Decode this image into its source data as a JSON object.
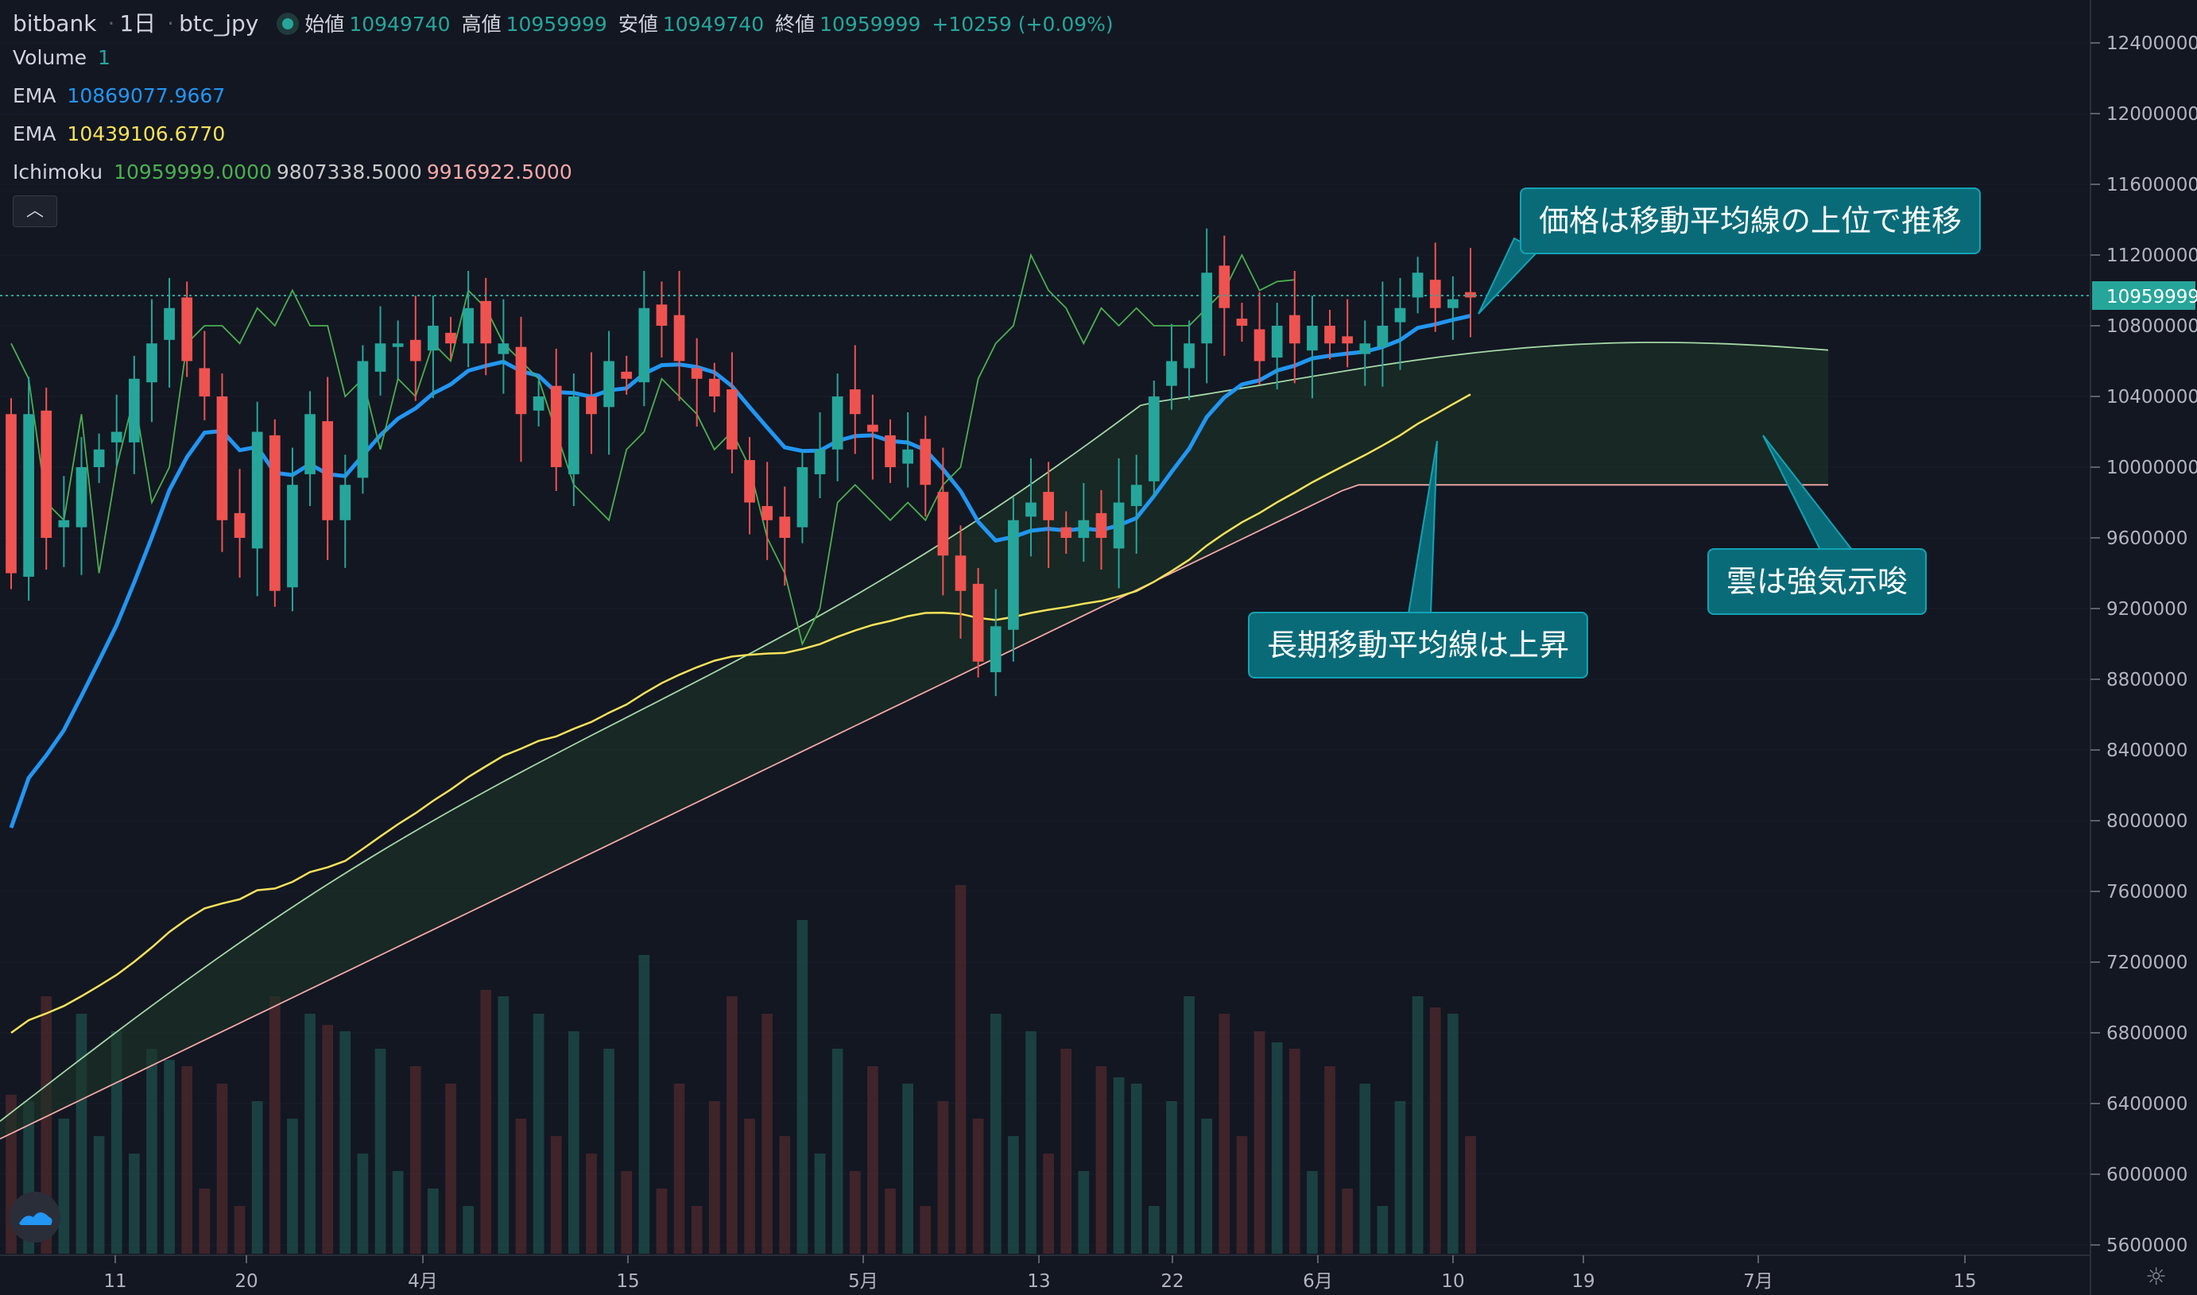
{
  "header": {
    "symbol_exchange": "bitbank",
    "interval": "1日",
    "symbol": "btc_jpy",
    "ohlc": [
      {
        "label": "始値",
        "value": "10949740"
      },
      {
        "label": "高値",
        "value": "10959999"
      },
      {
        "label": "安値",
        "value": "10949740"
      },
      {
        "label": "終値",
        "value": "10959999"
      }
    ],
    "change": "+10259 (+0.09%)"
  },
  "indicators": {
    "volume": {
      "label": "Volume",
      "value": "1"
    },
    "ema_fast": {
      "label": "EMA",
      "value": "10869077.9667",
      "color": "#2196f3"
    },
    "ema_slow": {
      "label": "EMA",
      "value": "10439106.6770",
      "color": "#f5e25a"
    },
    "ichimoku": {
      "label": "Ichimoku",
      "values": [
        "10959999.0000",
        "9807338.5000",
        "9916922.5000"
      ],
      "colors": [
        "#4caf50",
        "#c8c8c8",
        "#f4a8a8"
      ]
    }
  },
  "collapse_icon": "chevron-up-icon",
  "annotations": [
    {
      "text": "価格は移動平均線の上位で推移"
    },
    {
      "text": "長期移動平均線は上昇"
    },
    {
      "text": "雲は強気示唆"
    }
  ],
  "chart_data": {
    "type": "candlestick",
    "colors": {
      "up": "#26a69a",
      "down": "#ef5350",
      "bg": "#131722"
    },
    "x_ticks": [
      "11",
      "20",
      "4月",
      "15",
      "5月",
      "13",
      "22",
      "6月",
      "10",
      "19",
      "7月",
      "15"
    ],
    "y_ticks": [
      "12400000",
      "12000000",
      "11600000",
      "11200000",
      "10800000",
      "10400000",
      "10000000",
      "9600000",
      "9200000",
      "8800000",
      "8400000",
      "8000000",
      "7600000",
      "7200000",
      "6800000",
      "6400000",
      "6000000",
      "5600000"
    ],
    "last_price_label": "10959999",
    "candles_close_approx": [
      9400000,
      10300000,
      9600000,
      9700000,
      10000000,
      10100000,
      10200000,
      10500000,
      10700000,
      10900000,
      10600000,
      10400000,
      9700000,
      9600000,
      10200000,
      9300000,
      9900000,
      10300000,
      9700000,
      9900000,
      10600000,
      10700000,
      10700000,
      10600000,
      10800000,
      10700000,
      10900000,
      10700000,
      10700000,
      10300000,
      10400000,
      10000000,
      10400000,
      10300000,
      10600000,
      10500000,
      10900000,
      10800000,
      10600000,
      10500000,
      10400000,
      10100000,
      9800000,
      9700000,
      9600000,
      10000000,
      10100000,
      10400000,
      10300000,
      10200000,
      10000000,
      10100000,
      9900000,
      9500000,
      9300000,
      8900000,
      9100000,
      9700000,
      9800000,
      9700000,
      9600000,
      9700000,
      9600000,
      9800000,
      9900000,
      10400000,
      10600000,
      10700000,
      11100000,
      10900000,
      10800000,
      10600000,
      10800000,
      10700000,
      10800000,
      10700000,
      10700000,
      10700000,
      10800000,
      10900000,
      11100000,
      10900000,
      10950000,
      10960000
    ]
  }
}
